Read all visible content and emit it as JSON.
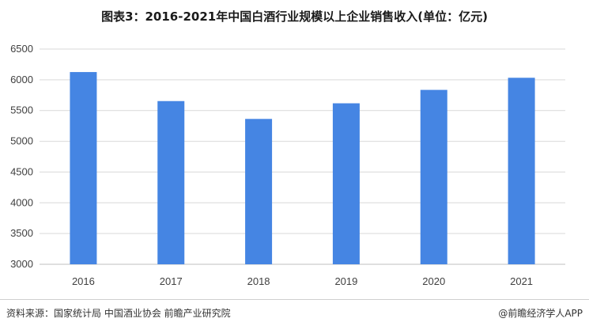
{
  "title": "图表3：2016-2021年中国白酒行业规模以上企业销售收入(单位：亿元)",
  "source": "资料来源：国家统计局 中国酒业协会 前瞻产业研究院",
  "brand": "@前瞻经济学人APP",
  "colors": {
    "bar": "#4585e3",
    "grid": "#d9d9d9",
    "axis": "#bfbfbf"
  },
  "chart_data": {
    "type": "bar",
    "title": "图表3：2016-2021年中国白酒行业规模以上企业销售收入(单位：亿元)",
    "categories": [
      "2016",
      "2017",
      "2018",
      "2019",
      "2020",
      "2021"
    ],
    "values": [
      6126,
      5654,
      5364,
      5618,
      5836,
      6033
    ],
    "xlabel": "",
    "ylabel": "",
    "ylim": [
      3000,
      6500
    ],
    "yticks": [
      3000,
      3500,
      4000,
      4500,
      5000,
      5500,
      6000,
      6500
    ],
    "grid": true,
    "legend": "none"
  }
}
